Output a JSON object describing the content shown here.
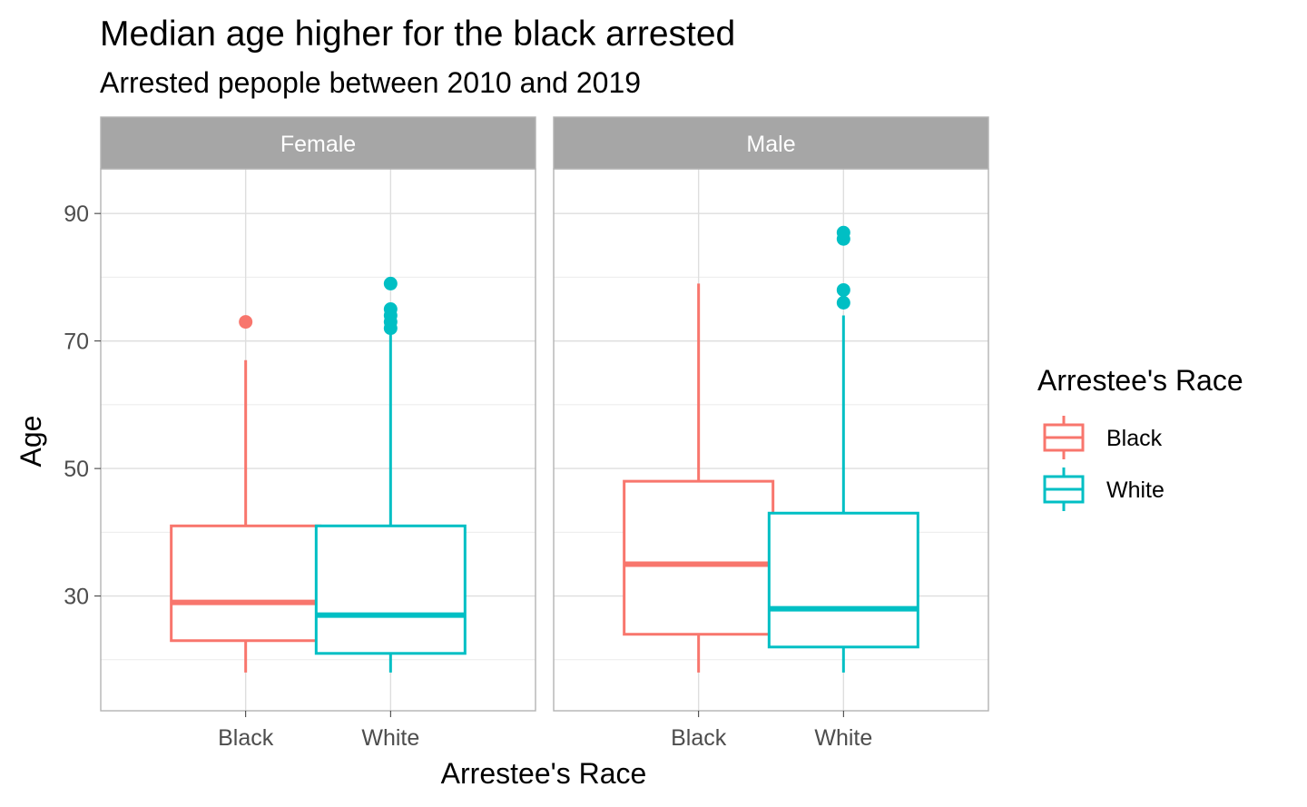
{
  "colors": {
    "Black": "#F8766D",
    "White": "#00BFC4"
  },
  "chart_data": {
    "type": "boxplot",
    "title": "Median age higher for the black arrested",
    "subtitle": "Arrested pepople between 2010 and 2019",
    "xlabel": "Arrestee's Race",
    "ylabel": "Age",
    "ylim": [
      12,
      97
    ],
    "yticks": [
      30,
      50,
      70,
      90
    ],
    "categories": [
      "Black",
      "White"
    ],
    "legend": {
      "title": "Arrestee's Race",
      "items": [
        "Black",
        "White"
      ],
      "position": "right"
    },
    "panels": [
      {
        "name": "Female",
        "boxes": [
          {
            "race": "Black",
            "lower_whisker": 18,
            "q1": 23,
            "median": 29,
            "q3": 41,
            "upper_whisker": 67,
            "outliers": [
              73
            ]
          },
          {
            "race": "White",
            "lower_whisker": 18,
            "q1": 21,
            "median": 27,
            "q3": 41,
            "upper_whisker": 71,
            "outliers": [
              72,
              73,
              74,
              75,
              79
            ]
          }
        ]
      },
      {
        "name": "Male",
        "boxes": [
          {
            "race": "Black",
            "lower_whisker": 18,
            "q1": 24,
            "median": 35,
            "q3": 48,
            "upper_whisker": 79,
            "outliers": []
          },
          {
            "race": "White",
            "lower_whisker": 18,
            "q1": 22,
            "median": 28,
            "q3": 43,
            "upper_whisker": 74,
            "outliers": [
              76,
              78,
              86,
              87
            ]
          }
        ]
      }
    ]
  }
}
